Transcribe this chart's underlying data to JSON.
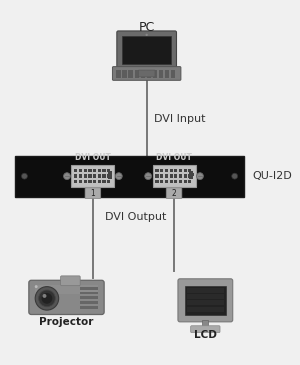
{
  "bg_color": "#f0f0f0",
  "pc_label": "PC",
  "dvi_input_label": "DVI Input",
  "dvi_output_label": "DVI Output",
  "device_label": "QU-I2D",
  "dvi_out1_label": "DVI OUT",
  "dvi_out2_label": "DVI OUT",
  "projector_label": "Projector",
  "lcd_label": "LCD",
  "line_color": "#777777",
  "box_color": "#0d0d0d"
}
